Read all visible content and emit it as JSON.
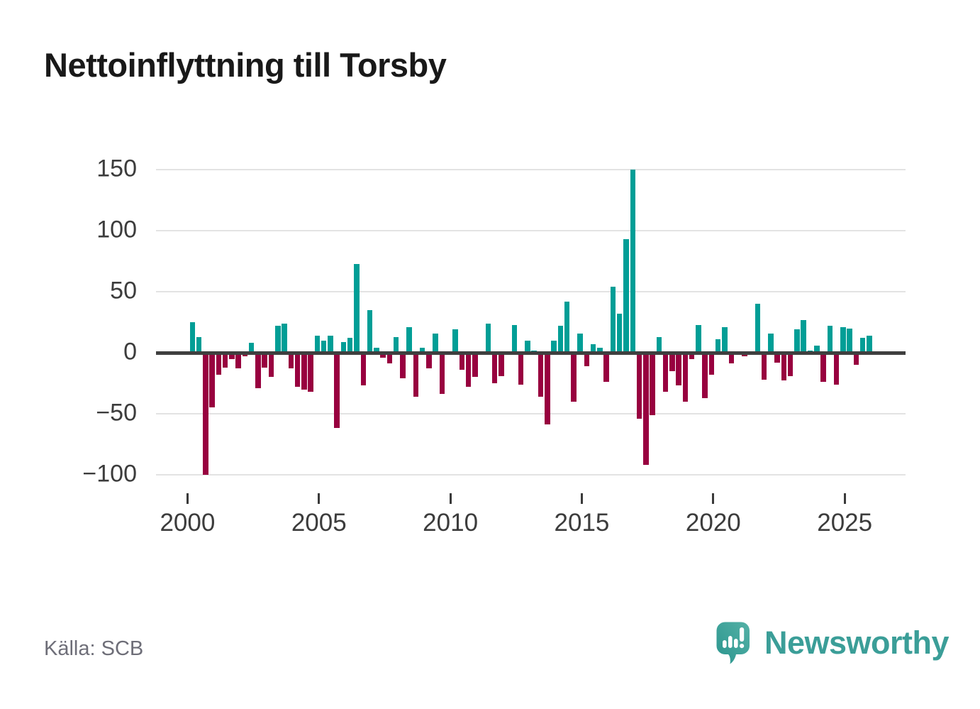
{
  "page": {
    "title": "Nettoinflyttning till Torsby",
    "source": "Källa: SCB",
    "brand": "Newsworthy"
  },
  "chart_data": {
    "type": "bar",
    "title": "Nettoinflyttning till Torsby",
    "frequency": "quarterly",
    "grid": true,
    "legend": false,
    "x_tick_labels": [
      "2000",
      "2005",
      "2010",
      "2015",
      "2020",
      "2025"
    ],
    "y_ticks": [
      150,
      100,
      50,
      0,
      -50,
      -100
    ],
    "y_tick_labels": [
      "150",
      "100",
      "50",
      "0",
      "−50",
      "−100"
    ],
    "ylim": [
      -113,
      158
    ],
    "colors": {
      "positive": "#009e96",
      "negative": "#98003f"
    },
    "points": [
      [
        "2000 Q1",
        25
      ],
      [
        "2000 Q2",
        13
      ],
      [
        "2000 Q3",
        -100
      ],
      [
        "2000 Q4",
        -45
      ],
      [
        "2001 Q1",
        -18
      ],
      [
        "2001 Q2",
        -12
      ],
      [
        "2001 Q3",
        -5
      ],
      [
        "2001 Q4",
        -13
      ],
      [
        "2002 Q1",
        -3
      ],
      [
        "2002 Q2",
        8
      ],
      [
        "2002 Q3",
        -29
      ],
      [
        "2002 Q4",
        -12
      ],
      [
        "2003 Q1",
        -20
      ],
      [
        "2003 Q2",
        22
      ],
      [
        "2003 Q3",
        24
      ],
      [
        "2003 Q4",
        -13
      ],
      [
        "2004 Q1",
        -28
      ],
      [
        "2004 Q2",
        -30
      ],
      [
        "2004 Q3",
        -32
      ],
      [
        "2004 Q4",
        14
      ],
      [
        "2005 Q1",
        10
      ],
      [
        "2005 Q2",
        14
      ],
      [
        "2005 Q3",
        -62
      ],
      [
        "2005 Q4",
        9
      ],
      [
        "2006 Q1",
        12
      ],
      [
        "2006 Q2",
        73
      ],
      [
        "2006 Q3",
        -27
      ],
      [
        "2006 Q4",
        35
      ],
      [
        "2007 Q1",
        4
      ],
      [
        "2007 Q2",
        -4
      ],
      [
        "2007 Q3",
        -9
      ],
      [
        "2007 Q4",
        13
      ],
      [
        "2008 Q1",
        -21
      ],
      [
        "2008 Q2",
        21
      ],
      [
        "2008 Q3",
        -36
      ],
      [
        "2008 Q4",
        4
      ],
      [
        "2009 Q1",
        -13
      ],
      [
        "2009 Q2",
        16
      ],
      [
        "2009 Q3",
        -34
      ],
      [
        "2009 Q4",
        0
      ],
      [
        "2010 Q1",
        19
      ],
      [
        "2010 Q2",
        -14
      ],
      [
        "2010 Q3",
        -28
      ],
      [
        "2010 Q4",
        -20
      ],
      [
        "2011 Q1",
        0
      ],
      [
        "2011 Q2",
        24
      ],
      [
        "2011 Q3",
        -25
      ],
      [
        "2011 Q4",
        -19
      ],
      [
        "2012 Q1",
        0
      ],
      [
        "2012 Q2",
        23
      ],
      [
        "2012 Q3",
        -26
      ],
      [
        "2012 Q4",
        10
      ],
      [
        "2013 Q1",
        2
      ],
      [
        "2013 Q2",
        -36
      ],
      [
        "2013 Q3",
        -59
      ],
      [
        "2013 Q4",
        10
      ],
      [
        "2014 Q1",
        22
      ],
      [
        "2014 Q2",
        42
      ],
      [
        "2014 Q3",
        -40
      ],
      [
        "2014 Q4",
        16
      ],
      [
        "2015 Q1",
        -11
      ],
      [
        "2015 Q2",
        7
      ],
      [
        "2015 Q3",
        4
      ],
      [
        "2015 Q4",
        -24
      ],
      [
        "2016 Q1",
        54
      ],
      [
        "2016 Q2",
        32
      ],
      [
        "2016 Q3",
        93
      ],
      [
        "2016 Q4",
        150
      ],
      [
        "2017 Q1",
        -54
      ],
      [
        "2017 Q2",
        -92
      ],
      [
        "2017 Q3",
        -51
      ],
      [
        "2017 Q4",
        13
      ],
      [
        "2018 Q1",
        -32
      ],
      [
        "2018 Q2",
        -15
      ],
      [
        "2018 Q3",
        -27
      ],
      [
        "2018 Q4",
        -40
      ],
      [
        "2019 Q1",
        -5
      ],
      [
        "2019 Q2",
        23
      ],
      [
        "2019 Q3",
        -37
      ],
      [
        "2019 Q4",
        -18
      ],
      [
        "2020 Q1",
        11
      ],
      [
        "2020 Q2",
        21
      ],
      [
        "2020 Q3",
        -9
      ],
      [
        "2020 Q4",
        -2
      ],
      [
        "2021 Q1",
        -3
      ],
      [
        "2021 Q2",
        0
      ],
      [
        "2021 Q3",
        40
      ],
      [
        "2021 Q4",
        -22
      ],
      [
        "2022 Q1",
        16
      ],
      [
        "2022 Q2",
        -8
      ],
      [
        "2022 Q3",
        -23
      ],
      [
        "2022 Q4",
        -19
      ],
      [
        "2023 Q1",
        19
      ],
      [
        "2023 Q2",
        27
      ],
      [
        "2023 Q3",
        2
      ],
      [
        "2023 Q4",
        6
      ],
      [
        "2024 Q1",
        -24
      ],
      [
        "2024 Q2",
        22
      ],
      [
        "2024 Q3",
        -26
      ],
      [
        "2024 Q4",
        21
      ],
      [
        "2025 Q1",
        20
      ],
      [
        "2025 Q2",
        -10
      ],
      [
        "2025 Q3",
        12
      ],
      [
        "2025 Q4",
        14
      ]
    ]
  }
}
